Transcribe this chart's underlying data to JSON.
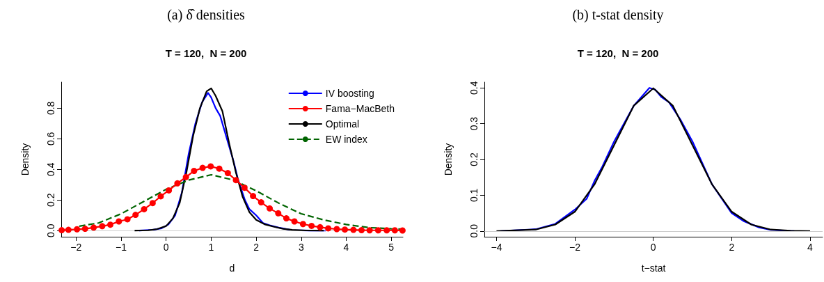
{
  "chart_data": [
    {
      "type": "line",
      "title": "(a) δ̂ densities",
      "subtitle": "T = 120,  N = 200",
      "xlabel": "d",
      "ylabel": "Density",
      "xlim": [
        -2.33,
        5.26
      ],
      "ylim": [
        -0.04,
        0.97
      ],
      "xticks": [
        {
          "value": -2,
          "label": "−2"
        },
        {
          "value": -1,
          "label": "−1"
        },
        0,
        1,
        2,
        3,
        4,
        5
      ],
      "yticks": [
        {
          "value": 0,
          "label": "0.0"
        },
        0.2,
        0.4,
        0.6,
        0.8
      ],
      "grid": false,
      "legend": "top right",
      "ref_lines": [
        {
          "axis": "y",
          "value": 0,
          "color": "#cccccc"
        }
      ],
      "series": [
        {
          "name": "IV boosting",
          "color": "#0000ff",
          "marker": "none",
          "line_style": "solid",
          "x": [
            -0.6,
            -0.3,
            -0.1,
            0.05,
            0.2,
            0.35,
            0.5,
            0.65,
            0.8,
            0.93,
            1.0,
            1.1,
            1.2,
            1.35,
            1.5,
            1.6,
            1.75,
            1.85,
            2.0,
            2.15,
            2.3,
            2.5,
            2.8,
            3.2,
            3.55
          ],
          "values": [
            0.0,
            0.005,
            0.015,
            0.04,
            0.1,
            0.25,
            0.5,
            0.7,
            0.84,
            0.9,
            0.87,
            0.8,
            0.75,
            0.6,
            0.45,
            0.33,
            0.2,
            0.14,
            0.1,
            0.05,
            0.035,
            0.02,
            0.003,
            0.0,
            0.0
          ]
        },
        {
          "name": "Fama−MacBeth",
          "color": "#ff0000",
          "marker": "circle",
          "line_style": "solid",
          "x": [
            -2.32,
            -2.17,
            -1.98,
            -1.8,
            -1.61,
            -1.42,
            -1.24,
            -1.05,
            -0.86,
            -0.68,
            -0.49,
            -0.3,
            -0.12,
            0.06,
            0.25,
            0.44,
            0.62,
            0.81,
            0.99,
            1.18,
            1.37,
            1.55,
            1.74,
            1.93,
            2.11,
            2.3,
            2.49,
            2.67,
            2.85,
            3.04,
            3.23,
            3.42,
            3.6,
            3.79,
            3.97,
            4.16,
            4.34,
            4.52,
            4.71,
            4.9,
            5.08,
            5.25
          ],
          "values": [
            0.003,
            0.005,
            0.009,
            0.012,
            0.02,
            0.029,
            0.039,
            0.06,
            0.074,
            0.103,
            0.14,
            0.18,
            0.224,
            0.263,
            0.309,
            0.35,
            0.39,
            0.41,
            0.42,
            0.405,
            0.376,
            0.33,
            0.28,
            0.226,
            0.185,
            0.145,
            0.113,
            0.08,
            0.06,
            0.043,
            0.031,
            0.022,
            0.015,
            0.01,
            0.007,
            0.005,
            0.003,
            0.002,
            0.002,
            0.002,
            0.002,
            0.001
          ]
        },
        {
          "name": "Optimal",
          "color": "#000000",
          "marker": "none",
          "line_style": "solid",
          "x": [
            -0.7,
            -0.4,
            -0.2,
            0,
            0.15,
            0.3,
            0.45,
            0.6,
            0.75,
            0.9,
            1.0,
            1.1,
            1.25,
            1.4,
            1.55,
            1.7,
            1.85,
            2.0,
            2.2,
            2.4,
            2.6,
            2.8,
            3.1,
            3.5
          ],
          "values": [
            0.0,
            0.002,
            0.01,
            0.03,
            0.08,
            0.18,
            0.38,
            0.62,
            0.8,
            0.91,
            0.93,
            0.88,
            0.78,
            0.57,
            0.38,
            0.22,
            0.12,
            0.07,
            0.04,
            0.025,
            0.012,
            0.005,
            0.001,
            0.0
          ]
        },
        {
          "name": "EW index",
          "color": "#006400",
          "marker": "none",
          "line_style": "dashed",
          "x": [
            -1.93,
            -1.5,
            -1,
            -0.5,
            0,
            0.5,
            1,
            1.5,
            2,
            2.5,
            3,
            3.5,
            4,
            4.5,
            5,
            5.25
          ],
          "values": [
            0.029,
            0.05,
            0.11,
            0.19,
            0.27,
            0.33,
            0.365,
            0.33,
            0.26,
            0.18,
            0.11,
            0.07,
            0.04,
            0.02,
            0.012,
            0.01
          ]
        }
      ]
    },
    {
      "type": "line",
      "title": "(b) t-stat density",
      "subtitle": "T = 120,  N = 200",
      "xlabel": "t−stat",
      "ylabel": "Density",
      "xlim": [
        -4.31,
        4.32
      ],
      "ylim": [
        -0.016,
        0.416
      ],
      "xticks": [
        {
          "value": -4,
          "label": "−4"
        },
        {
          "value": -2,
          "label": "−2"
        },
        0,
        2,
        4
      ],
      "yticks": [
        {
          "value": 0,
          "label": "0.0"
        },
        0.1,
        0.2,
        0.3,
        0.4
      ],
      "grid": false,
      "legend": false,
      "ref_lines": [
        {
          "axis": "y",
          "value": 0,
          "color": "#cccccc"
        }
      ],
      "series": [
        {
          "color": "#0000ff",
          "marker": "none",
          "line_style": "solid",
          "x": [
            -3.9,
            -3,
            -2.5,
            -2,
            -1.7,
            -1.5,
            -1.3,
            -1,
            -0.5,
            -0.1,
            0.05,
            0.2,
            0.4,
            0.7,
            1,
            1.5,
            2,
            2.3,
            2.7,
            3,
            3.6
          ],
          "values": [
            0.0,
            0.005,
            0.02,
            0.06,
            0.09,
            0.14,
            0.18,
            0.25,
            0.35,
            0.4,
            0.395,
            0.375,
            0.36,
            0.31,
            0.25,
            0.13,
            0.05,
            0.028,
            0.01,
            0.003,
            0.0
          ]
        },
        {
          "color": "#000000",
          "marker": "none",
          "line_style": "solid",
          "x": [
            -4,
            -3,
            -2.5,
            -2,
            -1.5,
            -1,
            -0.5,
            0,
            0.5,
            1,
            1.5,
            2,
            2.5,
            3,
            3.5,
            4
          ],
          "values": [
            0.0,
            0.004,
            0.018,
            0.054,
            0.13,
            0.24,
            0.35,
            0.399,
            0.35,
            0.24,
            0.13,
            0.054,
            0.018,
            0.004,
            0.001,
            0.0
          ]
        }
      ]
    }
  ]
}
